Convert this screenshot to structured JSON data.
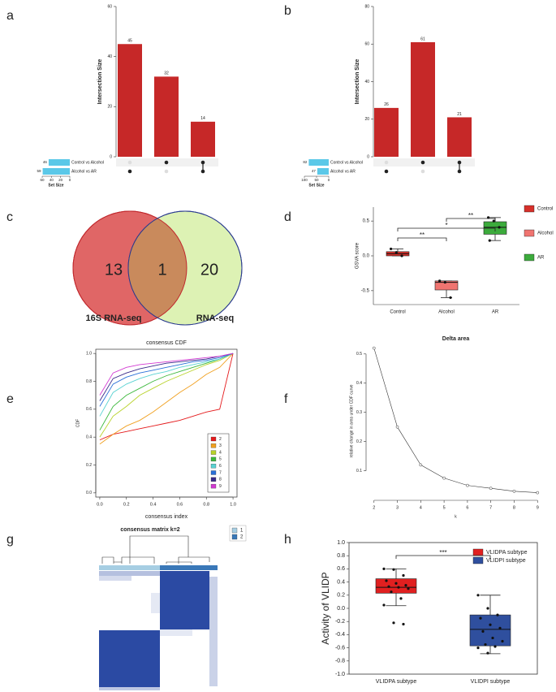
{
  "chart_data": [
    {
      "panel": "a",
      "type": "upset",
      "y_label": "Intersection Size",
      "values": [
        45,
        32,
        14
      ],
      "color": "#c62828",
      "ylim": [
        0,
        60
      ],
      "yticks": [
        0,
        20,
        40,
        60
      ],
      "sets": [
        {
          "name": "Control vs Alcohol",
          "size": 46,
          "members": [
            false,
            true,
            true
          ]
        },
        {
          "name": "Alcohol vs AR",
          "size": 59,
          "members": [
            true,
            false,
            true
          ]
        }
      ],
      "set_color": "#5bc8e8",
      "set_size_label": "Set Size",
      "set_size_lim": [
        0,
        60
      ],
      "set_size_ticks": [
        60,
        40,
        20,
        0
      ]
    },
    {
      "panel": "b",
      "type": "upset",
      "y_label": "Intersection Size",
      "values": [
        26,
        61,
        21
      ],
      "color": "#c62828",
      "ylim": [
        0,
        80
      ],
      "yticks": [
        0,
        20,
        40,
        60,
        80
      ],
      "sets": [
        {
          "name": "Control vs Alcohol",
          "size": 82,
          "members": [
            false,
            true,
            true
          ]
        },
        {
          "name": "Alcohol vs AR",
          "size": 47,
          "members": [
            true,
            false,
            true
          ]
        }
      ],
      "set_color": "#5bc8e8",
      "set_size_label": "Set Size",
      "set_size_lim": [
        0,
        100
      ],
      "set_size_ticks": [
        100,
        50,
        0
      ]
    },
    {
      "panel": "c",
      "type": "venn",
      "sets": [
        {
          "name": "16S RNA-seq",
          "color": "#e06666",
          "stroke": "#c0282d"
        },
        {
          "name": "RNA-seq",
          "color": "#ddf2b4",
          "stroke": "#2a3a8f"
        }
      ],
      "values": [
        13,
        1,
        20
      ],
      "overlap_color": "#c98a5c"
    },
    {
      "panel": "d",
      "type": "box",
      "y_label": "GSVA score",
      "categories": [
        "Control",
        "Alcohol",
        "AR"
      ],
      "boxes": [
        {
          "color": "#d7302a",
          "min": 0.0,
          "q1": 0.0,
          "median": 0.03,
          "q3": 0.06,
          "max": 0.1,
          "points": [
            0.1,
            0.05,
            0.0
          ]
        },
        {
          "color": "#f07470",
          "min": -0.6,
          "q1": -0.49,
          "median": -0.38,
          "q3": -0.36,
          "max": -0.36,
          "points": [
            -0.36,
            -0.38,
            -0.6
          ]
        },
        {
          "color": "#3cab3c",
          "min": 0.22,
          "q1": 0.31,
          "median": 0.41,
          "q3": 0.49,
          "max": 0.55,
          "points": [
            0.55,
            0.5,
            0.41,
            0.22
          ]
        }
      ],
      "ylim": [
        -0.7,
        0.7
      ],
      "yticks": [
        -0.5,
        {
          "value": 0,
          "label": "0.0"
        },
        0.5
      ],
      "annotations": [
        {
          "text": "**",
          "between": [
            "Control",
            "Alcohol"
          ]
        },
        {
          "text": "*",
          "between": [
            "Control",
            "AR"
          ]
        },
        {
          "text": "**",
          "between": [
            "Alcohol",
            "AR"
          ]
        }
      ]
    },
    {
      "panel": "e",
      "type": "line",
      "title": "consensus CDF",
      "x_label": "consensus index",
      "y_label": "CDF",
      "x": [
        0,
        0.1,
        0.2,
        0.3,
        0.4,
        0.5,
        0.6,
        0.7,
        0.8,
        0.9,
        1
      ],
      "series": [
        {
          "name": "2",
          "color": "#e41a1c",
          "values": [
            0.38,
            0.42,
            0.44,
            0.46,
            0.48,
            0.5,
            0.52,
            0.55,
            0.58,
            0.6,
            1.0
          ]
        },
        {
          "name": "3",
          "color": "#f0a020",
          "values": [
            0.35,
            0.42,
            0.48,
            0.52,
            0.58,
            0.65,
            0.72,
            0.78,
            0.85,
            0.9,
            1.0
          ]
        },
        {
          "name": "4",
          "color": "#b8d22a",
          "values": [
            0.4,
            0.55,
            0.62,
            0.7,
            0.75,
            0.8,
            0.84,
            0.88,
            0.92,
            0.95,
            1.0
          ]
        },
        {
          "name": "5",
          "color": "#3cb83c",
          "values": [
            0.45,
            0.62,
            0.7,
            0.75,
            0.8,
            0.84,
            0.87,
            0.9,
            0.93,
            0.96,
            1.0
          ]
        },
        {
          "name": "6",
          "color": "#5ad2d2",
          "values": [
            0.55,
            0.72,
            0.78,
            0.82,
            0.85,
            0.87,
            0.9,
            0.92,
            0.94,
            0.96,
            1.0
          ]
        },
        {
          "name": "7",
          "color": "#2a70d8",
          "values": [
            0.62,
            0.78,
            0.83,
            0.86,
            0.88,
            0.9,
            0.92,
            0.94,
            0.95,
            0.97,
            1.0
          ]
        },
        {
          "name": "8",
          "color": "#3a2a8a",
          "values": [
            0.66,
            0.82,
            0.86,
            0.89,
            0.91,
            0.93,
            0.94,
            0.95,
            0.96,
            0.98,
            1.0
          ]
        },
        {
          "name": "9",
          "color": "#d23ad2",
          "values": [
            0.7,
            0.86,
            0.9,
            0.92,
            0.93,
            0.94,
            0.95,
            0.96,
            0.97,
            0.98,
            1.0
          ]
        }
      ],
      "xlim": [
        -0.03,
        1.03
      ],
      "xticks": [
        {
          "value": 0,
          "label": "0.0"
        },
        0.2,
        0.4,
        0.6,
        0.8,
        {
          "value": 1,
          "label": "1.0"
        }
      ],
      "ylim": [
        -0.03,
        1.03
      ],
      "yticks": [
        {
          "value": 0,
          "label": "0.0"
        },
        0.2,
        0.4,
        0.6,
        0.8,
        {
          "value": 1,
          "label": "1.0"
        }
      ]
    },
    {
      "panel": "f",
      "type": "line",
      "title": "Delta area",
      "x_label": "k",
      "y_label": "relative change in area under CDF curve",
      "x": [
        2,
        3,
        4,
        5,
        6,
        7,
        8,
        9
      ],
      "values": [
        0.52,
        0.25,
        0.12,
        0.075,
        0.05,
        0.04,
        0.03,
        0.025
      ],
      "color": "#333333",
      "xlim": [
        1.8,
        9.2
      ],
      "xticks": [
        2,
        3,
        4,
        5,
        6,
        7,
        8,
        9
      ],
      "ylim": [
        0.01,
        0.53
      ],
      "yticks": [
        0.1,
        0.2,
        0.3,
        0.4,
        0.5
      ]
    },
    {
      "panel": "g",
      "type": "heatmap",
      "title": "consensus matrix k=2",
      "color": "#2b4aa3",
      "legend": [
        {
          "name": "1",
          "color": "#a6cee3"
        },
        {
          "name": "2",
          "color": "#3a78b8"
        }
      ]
    },
    {
      "panel": "h",
      "type": "box",
      "y_label": "Activity of VLIDP",
      "categories": [
        "VLIDPA subtype",
        "VLIDPI subtype"
      ],
      "boxes": [
        {
          "color": "#e02020",
          "min": 0.04,
          "q1": 0.23,
          "median": 0.32,
          "q3": 0.45,
          "max": 0.6,
          "points": [
            0.6,
            0.59,
            0.5,
            0.42,
            0.38,
            0.35,
            0.33,
            0.32,
            0.3,
            0.25,
            0.15,
            0.05,
            -0.22,
            -0.24
          ]
        },
        {
          "color": "#2f4f9e",
          "min": -0.69,
          "q1": -0.57,
          "median": -0.32,
          "q3": -0.1,
          "max": 0.2,
          "points": [
            0.2,
            0.0,
            -0.1,
            -0.15,
            -0.25,
            -0.3,
            -0.35,
            -0.45,
            -0.5,
            -0.55,
            -0.58,
            -0.6,
            -0.68
          ]
        }
      ],
      "ylim": [
        -1.0,
        1.0
      ],
      "yticks": [
        {
          "value": -1,
          "label": "-1.0"
        },
        -0.8,
        -0.6,
        -0.4,
        -0.2,
        {
          "value": 0,
          "label": "0.0"
        },
        0.2,
        0.4,
        0.6,
        0.8,
        {
          "value": 1,
          "label": "1.0"
        }
      ],
      "annotations": [
        {
          "text": "***",
          "between": [
            "VLIDPA subtype",
            "VLIDPI subtype"
          ]
        }
      ]
    }
  ]
}
